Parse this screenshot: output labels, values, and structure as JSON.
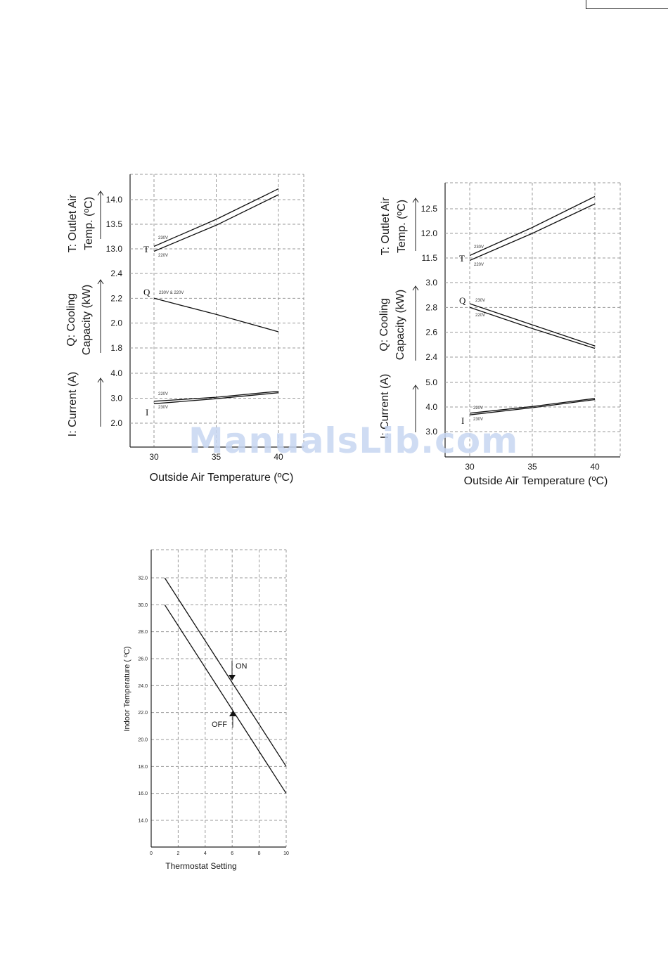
{
  "watermark": "ManualsLib.com",
  "chart_data": [
    {
      "type": "line",
      "xlabel": "Outside Air Temperature (ºC)",
      "x_ticks": [
        30,
        35,
        40
      ],
      "xlim": [
        28,
        41
      ],
      "panels": [
        {
          "key": "T",
          "ylabel": [
            "T: Outlet Air",
            "Temp. (ºC)"
          ],
          "letter": "T",
          "ylim": [
            12.8,
            14.5
          ],
          "y_ticks": [
            13.0,
            13.5,
            14.0
          ],
          "tick_labels": [
            "13.0",
            "13.5",
            "14.0"
          ],
          "series": [
            {
              "name": "230V",
              "x": [
                30,
                35,
                40
              ],
              "y": [
                13.05,
                13.6,
                14.22
              ]
            },
            {
              "name": "220V",
              "x": [
                30,
                35,
                40
              ],
              "y": [
                12.95,
                13.48,
                14.1
              ]
            }
          ]
        },
        {
          "key": "Q",
          "ylabel": [
            "Q: Cooling",
            "Capacity (kW)"
          ],
          "letter": "Q",
          "ylim": [
            1.7,
            2.4
          ],
          "y_ticks": [
            1.8,
            2.0,
            2.2,
            2.4
          ],
          "tick_labels": [
            "1.8",
            "2.0",
            "2.2",
            "2.4"
          ],
          "series": [
            {
              "name": "230V & 220V",
              "x": [
                30,
                35,
                40
              ],
              "y": [
                2.2,
                2.07,
                1.93
              ]
            }
          ]
        },
        {
          "key": "I",
          "ylabel": [
            "I: Current (A)"
          ],
          "letter": "I",
          "ylim": [
            1.8,
            4.0
          ],
          "y_ticks": [
            2.0,
            3.0,
            4.0
          ],
          "tick_labels": [
            "2.0",
            "3.0",
            "4.0"
          ],
          "series": [
            {
              "name": "220V",
              "x": [
                30,
                35,
                40
              ],
              "y": [
                2.88,
                3.04,
                3.28
              ]
            },
            {
              "name": "230V",
              "x": [
                30,
                35,
                40
              ],
              "y": [
                2.78,
                2.98,
                3.22
              ]
            }
          ]
        }
      ]
    },
    {
      "type": "line",
      "xlabel": "Outside Air Temperature (ºC)",
      "x_ticks": [
        30,
        35,
        40
      ],
      "xlim": [
        28,
        42
      ],
      "panels": [
        {
          "key": "T",
          "ylabel": [
            "T: Outlet Air",
            "Temp. (ºC)"
          ],
          "letter": "T",
          "ylim": [
            11.3,
            12.9
          ],
          "y_ticks": [
            11.5,
            12.0,
            12.5
          ],
          "tick_labels": [
            "11.5",
            "12.0",
            "12.5"
          ],
          "series": [
            {
              "name": "230V",
              "x": [
                30,
                35,
                40
              ],
              "y": [
                11.55,
                12.12,
                12.75
              ]
            },
            {
              "name": "220V",
              "x": [
                30,
                35,
                40
              ],
              "y": [
                11.45,
                12.0,
                12.6
              ]
            }
          ]
        },
        {
          "key": "Q",
          "ylabel": [
            "Q: Cooling",
            "Capacity (kW)"
          ],
          "letter": "Q",
          "ylim": [
            2.3,
            3.0
          ],
          "y_ticks": [
            2.4,
            2.6,
            2.8,
            3.0
          ],
          "tick_labels": [
            "2.4",
            "2.6",
            "2.8",
            "3.0"
          ],
          "series": [
            {
              "name": "230V",
              "x": [
                30,
                35,
                40
              ],
              "y": [
                2.83,
                2.66,
                2.49
              ]
            },
            {
              "name": "220V",
              "x": [
                30,
                35,
                40
              ],
              "y": [
                2.8,
                2.63,
                2.47
              ]
            }
          ]
        },
        {
          "key": "I",
          "ylabel": [
            "I: Current (A)"
          ],
          "letter": "I",
          "ylim": [
            2.8,
            5.0
          ],
          "y_ticks": [
            3.0,
            4.0,
            5.0
          ],
          "tick_labels": [
            "3.0",
            "4.0",
            "5.0"
          ],
          "series": [
            {
              "name": "220V",
              "x": [
                30,
                35,
                40
              ],
              "y": [
                3.75,
                4.02,
                4.35
              ]
            },
            {
              "name": "230V",
              "x": [
                30,
                35,
                40
              ],
              "y": [
                3.68,
                3.97,
                4.3
              ]
            }
          ]
        }
      ]
    },
    {
      "type": "line",
      "xlabel": "Thermostat Setting",
      "ylabel": "Indoor Temperature ( ºC)",
      "xlim": [
        0,
        10
      ],
      "ylim": [
        12.0,
        33.0
      ],
      "x_ticks": [
        0,
        2,
        4,
        6,
        8,
        10
      ],
      "x_tick_labels": [
        "0",
        "2",
        "4",
        "6",
        "8",
        "10"
      ],
      "y_ticks": [
        14,
        16,
        18,
        20,
        22,
        24,
        26,
        28,
        30,
        32
      ],
      "y_tick_labels": [
        "14.0",
        "16.0",
        "18.0",
        "20.0",
        "22.0",
        "24.0",
        "26.0",
        "28.0",
        "30.0",
        "32.0"
      ],
      "series": [
        {
          "name": "ON",
          "x": [
            1,
            10
          ],
          "y": [
            32.0,
            18.0
          ]
        },
        {
          "name": "OFF",
          "x": [
            1,
            10
          ],
          "y": [
            30.0,
            16.0
          ]
        }
      ],
      "annotations": [
        "ON",
        "OFF"
      ]
    }
  ]
}
